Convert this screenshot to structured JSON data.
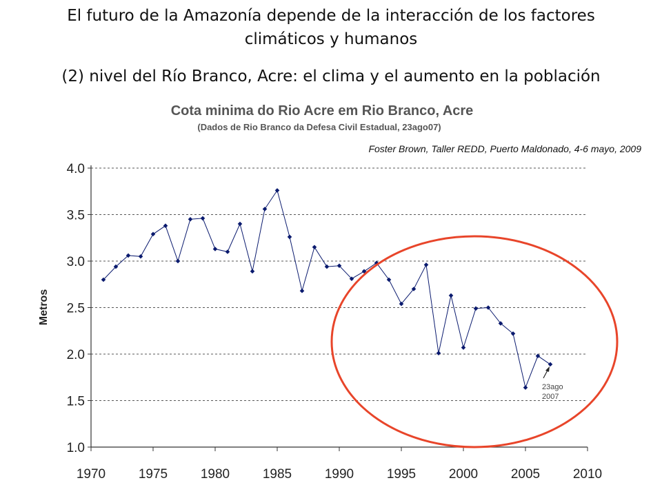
{
  "slide": {
    "title_line1": "El futuro de la Amazonía depende de la interacción de los factores",
    "title_line2": "climáticos y humanos",
    "subtitle": "(2) nivel del Río Branco, Acre: el clima y el aumento en la población",
    "credit": "Foster Brown, Taller REDD, Puerto Maldonado, 4-6 mayo, 2009"
  },
  "chart_data": {
    "type": "line",
    "title": "Cota minima do Rio Acre em Rio Branco, Acre",
    "subtitle": "(Dados de Rio Branco da Defesa Civil Estadual, 23ago07)",
    "xlabel": "",
    "ylabel": "Metros",
    "xlim": [
      1970,
      2010
    ],
    "ylim": [
      1.0,
      4.0
    ],
    "x_ticks": [
      1970,
      1975,
      1980,
      1985,
      1990,
      1995,
      2000,
      2005,
      2010
    ],
    "y_ticks": [
      "1.0",
      "1.5",
      "2.0",
      "2.5",
      "3.0",
      "3.5",
      "4.0"
    ],
    "grid": "horizontal dashed",
    "series": [
      {
        "color": "#0a1a6e",
        "x": [
          1971,
          1972,
          1973,
          1974,
          1975,
          1976,
          1977,
          1978,
          1979,
          1980,
          1981,
          1982,
          1983,
          1984,
          1985,
          1986,
          1987,
          1988,
          1989,
          1990,
          1991,
          1992,
          1993,
          1994,
          1995,
          1996,
          1997,
          1998,
          1999,
          2000,
          2001,
          2002,
          2003,
          2004,
          2005,
          2006,
          2007
        ],
        "y": [
          2.8,
          2.94,
          3.06,
          3.05,
          3.29,
          3.38,
          3.0,
          3.45,
          3.46,
          3.13,
          3.1,
          3.4,
          2.89,
          3.56,
          3.76,
          3.26,
          2.68,
          3.15,
          2.94,
          2.95,
          2.81,
          2.89,
          2.98,
          2.8,
          2.54,
          2.7,
          2.96,
          2.01,
          2.63,
          2.07,
          2.49,
          2.5,
          2.33,
          2.22,
          1.64,
          1.98,
          1.89
        ]
      }
    ],
    "annotation": {
      "line1": "23ago",
      "line2": "2007",
      "x": 2007,
      "y": 1.89
    },
    "highlight_color": "#e8452a"
  }
}
